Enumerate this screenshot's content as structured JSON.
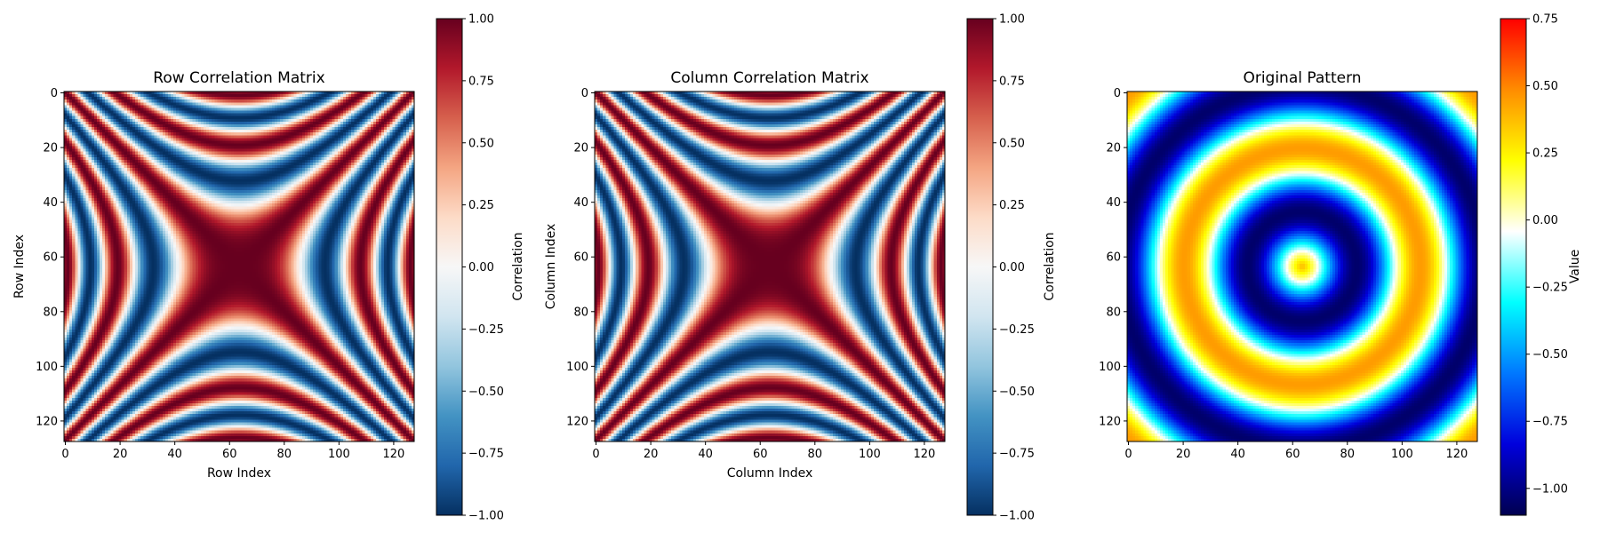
{
  "chart_data": [
    {
      "type": "heatmap",
      "title": "Row Correlation Matrix",
      "xlabel": "Row Index",
      "ylabel": "Row Index",
      "matrix_size": 128,
      "xlim": [
        0,
        127
      ],
      "ylim": [
        127,
        0
      ],
      "xticks": [
        0,
        20,
        40,
        60,
        80,
        100,
        120
      ],
      "yticks": [
        0,
        20,
        40,
        60,
        80,
        100,
        120
      ],
      "colormap": "RdBu_r",
      "colorbar": {
        "label": "Correlation",
        "range": [
          -1.0,
          1.0
        ],
        "ticks": [
          "1.00",
          "0.75",
          "0.50",
          "0.25",
          "0.00",
          "−0.25",
          "−0.50",
          "−0.75",
          "−1.00"
        ]
      }
    },
    {
      "type": "heatmap",
      "title": "Column Correlation Matrix",
      "xlabel": "Column Index",
      "ylabel": "Column Index",
      "matrix_size": 128,
      "xlim": [
        0,
        127
      ],
      "ylim": [
        127,
        0
      ],
      "xticks": [
        0,
        20,
        40,
        60,
        80,
        100,
        120
      ],
      "yticks": [
        0,
        20,
        40,
        60,
        80,
        100,
        120
      ],
      "colormap": "RdBu_r",
      "colorbar": {
        "label": "Correlation",
        "range": [
          -1.0,
          1.0
        ],
        "ticks": [
          "1.00",
          "0.75",
          "0.50",
          "0.25",
          "0.00",
          "−0.25",
          "−0.50",
          "−0.75",
          "−1.00"
        ]
      }
    },
    {
      "type": "heatmap",
      "title": "Original Pattern",
      "xlabel": "",
      "ylabel": "",
      "matrix_size": 128,
      "xlim": [
        0,
        127
      ],
      "ylim": [
        127,
        0
      ],
      "xticks": [
        0,
        20,
        40,
        60,
        80,
        100,
        120
      ],
      "yticks": [
        0,
        20,
        40,
        60,
        80,
        100,
        120
      ],
      "colormap": "jet-like",
      "colorbar": {
        "label": "Value",
        "range": [
          -1.1,
          0.75
        ],
        "ticks": [
          "0.75",
          "0.50",
          "0.25",
          "0.00",
          "−0.25",
          "−0.50",
          "−0.75",
          "−1.00"
        ]
      }
    }
  ]
}
